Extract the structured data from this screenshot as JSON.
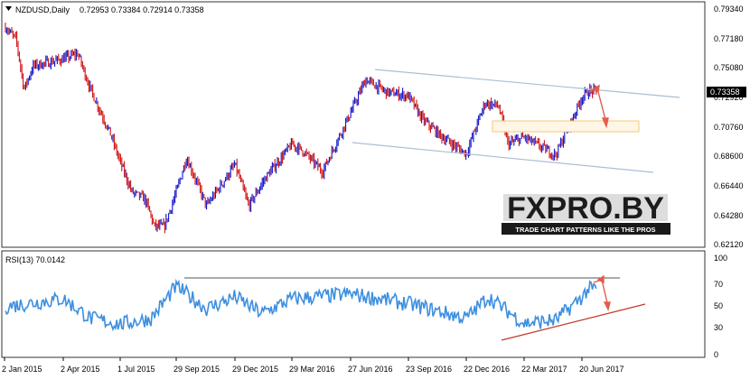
{
  "header": {
    "symbol_timeframe": "NZDUSD,Daily",
    "ohlc": "0.72953 0.73384 0.72914 0.73358"
  },
  "rsi": {
    "label": "RSI(13) 70.0142",
    "scale": [
      "100",
      "70",
      "50",
      "30",
      "0"
    ]
  },
  "price_scale": [
    "0.79340",
    "0.77180",
    "0.75080",
    "0.72920",
    "0.70760",
    "0.68600",
    "0.66440",
    "0.64280",
    "0.62120"
  ],
  "current_price": "0.73358",
  "time_axis": [
    "2 Jan 2015",
    "2 Apr 2015",
    "1 Jul 2015",
    "29 Sep 2015",
    "29 Dec 2015",
    "29 Mar 2016",
    "27 Jun 2016",
    "23 Sep 2016",
    "22 Dec 2016",
    "22 Mar 2017",
    "20 Jun 2017"
  ],
  "watermark": {
    "brand": "FXPRO.BY",
    "tagline": "TRADE CHART PATTERNS LIKE THE PROS"
  },
  "colors": {
    "bull": "#1010c8",
    "bear": "#d01010",
    "channel": "#a9bfd4",
    "rsi_line": "#3d8fe0",
    "support": "#c0392b",
    "target_zone": "#f5c87a",
    "arrow": "#e45c4a"
  },
  "chart_data": {
    "type": "candlestick",
    "instrument": "NZDUSD",
    "timeframe": "Daily",
    "ylim": [
      0.6212,
      0.7934
    ],
    "price_path": [
      [
        "2 Jan 2015",
        0.781
      ],
      [
        "2015-01-20",
        0.771
      ],
      [
        "2015-02-01",
        0.735
      ],
      [
        "2015-02-15",
        0.752
      ],
      [
        "2 Apr 2015",
        0.757
      ],
      [
        "2015-04-25",
        0.761
      ],
      [
        "2015-05-15",
        0.735
      ],
      [
        "2015-06-15",
        0.703
      ],
      [
        "1 Jul 2015",
        0.682
      ],
      [
        "2015-07-20",
        0.66
      ],
      [
        "2015-08-10",
        0.655
      ],
      [
        "2015-08-25",
        0.635
      ],
      [
        "2015-09-10",
        0.635
      ],
      [
        "29 Sep 2015",
        0.66
      ],
      [
        "2015-10-15",
        0.685
      ],
      [
        "2015-11-15",
        0.65
      ],
      [
        "29 Dec 2015",
        0.68
      ],
      [
        "2016-01-20",
        0.65
      ],
      [
        "2016-02-15",
        0.67
      ],
      [
        "29 Mar 2016",
        0.695
      ],
      [
        "2016-04-15",
        0.69
      ],
      [
        "2016-05-15",
        0.675
      ],
      [
        "27 Jun 2016",
        0.718
      ],
      [
        "2016-07-20",
        0.742
      ],
      [
        "2016-08-20",
        0.733
      ],
      [
        "23 Sep 2016",
        0.73
      ],
      [
        "2016-10-15",
        0.713
      ],
      [
        "2016-11-15",
        0.7
      ],
      [
        "22 Dec 2016",
        0.688
      ],
      [
        "2017-01-20",
        0.725
      ],
      [
        "2017-02-10",
        0.723
      ],
      [
        "2017-02-25",
        0.695
      ],
      [
        "22 Mar 2017",
        0.7
      ],
      [
        "2017-04-10",
        0.695
      ],
      [
        "2017-05-10",
        0.687
      ],
      [
        "20 Jun 2017",
        0.729
      ],
      [
        "2017-06-30",
        0.7336
      ]
    ],
    "rsi_path": [
      [
        "2 Jan 2015",
        52
      ],
      [
        "2 Apr 2015",
        60
      ],
      [
        "2015-05-15",
        40
      ],
      [
        "1 Jul 2015",
        34
      ],
      [
        "2015-08-20",
        40
      ],
      [
        "29 Sep 2015",
        73
      ],
      [
        "2015-11-15",
        50
      ],
      [
        "29 Dec 2015",
        62
      ],
      [
        "2016-02-10",
        45
      ],
      [
        "29 Mar 2016",
        60
      ],
      [
        "27 Jun 2016",
        65
      ],
      [
        "2016-08-10",
        60
      ],
      [
        "23 Sep 2016",
        55
      ],
      [
        "22 Dec 2016",
        40
      ],
      [
        "2017-01-25",
        62
      ],
      [
        "22 Mar 2017",
        35
      ],
      [
        "2017-05-10",
        38
      ],
      [
        "20 Jun 2017",
        62
      ],
      [
        "2017-06-30",
        70
      ]
    ],
    "rsi_ylim": [
      0,
      100
    ],
    "annotations": [
      "descending channel",
      "target zone 0.7050–0.7110",
      "RSI resistance at ~73",
      "RSI rising support line"
    ]
  }
}
